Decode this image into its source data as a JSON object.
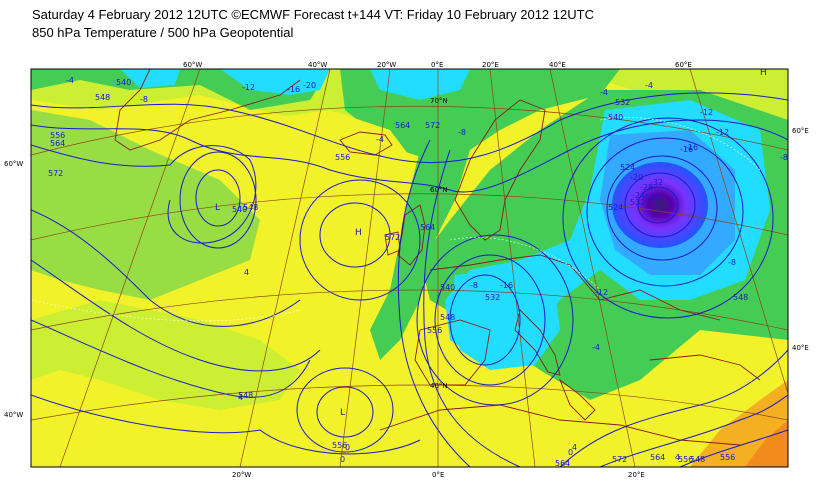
{
  "header": {
    "line1": "Saturday 4 February 2012 12UTC ©ECMWF Forecast t+144 VT: Friday 10 February 2012 12UTC",
    "line2": "850 hPa Temperature / 500 hPa Geopotential"
  },
  "colors": {
    "frame": "#000000",
    "contour": "#1a1acc",
    "coast": "#8b1a1a",
    "grid": "#8b4513",
    "t_cold_core": "#5500aa",
    "t_very_cold": "#7a33ff",
    "t_cold": "#2255ff",
    "t_cool": "#33aaff",
    "t_cyan": "#22ddff",
    "t_green": "#44cc55",
    "t_lightgreen": "#99dd44",
    "t_yellowgreen": "#ccee33",
    "t_yellow": "#f2f22a",
    "t_orange": "#f4b020",
    "t_deeporange": "#f28a1c"
  },
  "ticks": {
    "top": [
      "60°W",
      "40°W",
      "20°W",
      "0°E",
      "20°E",
      "40°E",
      "60°E"
    ],
    "bottom": [
      "20°W",
      "0°E",
      "20°E"
    ],
    "left": [
      "60°W",
      "40°W"
    ],
    "right": [
      "60°E",
      "40°E"
    ]
  },
  "interior_lat_labels": [
    "70°N",
    "60°N",
    "40°N"
  ],
  "geopotential_labels": [
    "540",
    "548",
    "556",
    "564",
    "572",
    "548",
    "540",
    "532",
    "524",
    "516",
    "524",
    "532",
    "540",
    "548",
    "556",
    "564",
    "572",
    "556",
    "564",
    "572",
    "548",
    "556",
    "564",
    "572",
    "548",
    "556",
    "548",
    "540",
    "532",
    "556",
    "564"
  ],
  "temperature_labels": [
    "-4",
    "-8",
    "-12",
    "-16",
    "-20",
    "-24",
    "-28",
    "-32",
    "-16",
    "-20",
    "-12",
    "-4",
    "4",
    "4",
    "0",
    "-4",
    "-8",
    "-12",
    "-16",
    "-8",
    "4",
    "-12",
    "-16",
    "-8",
    "-4",
    "0",
    "-4",
    "-8",
    "4",
    "0"
  ],
  "highs_lows": [
    "L",
    "H",
    "L",
    "L",
    "H"
  ]
}
